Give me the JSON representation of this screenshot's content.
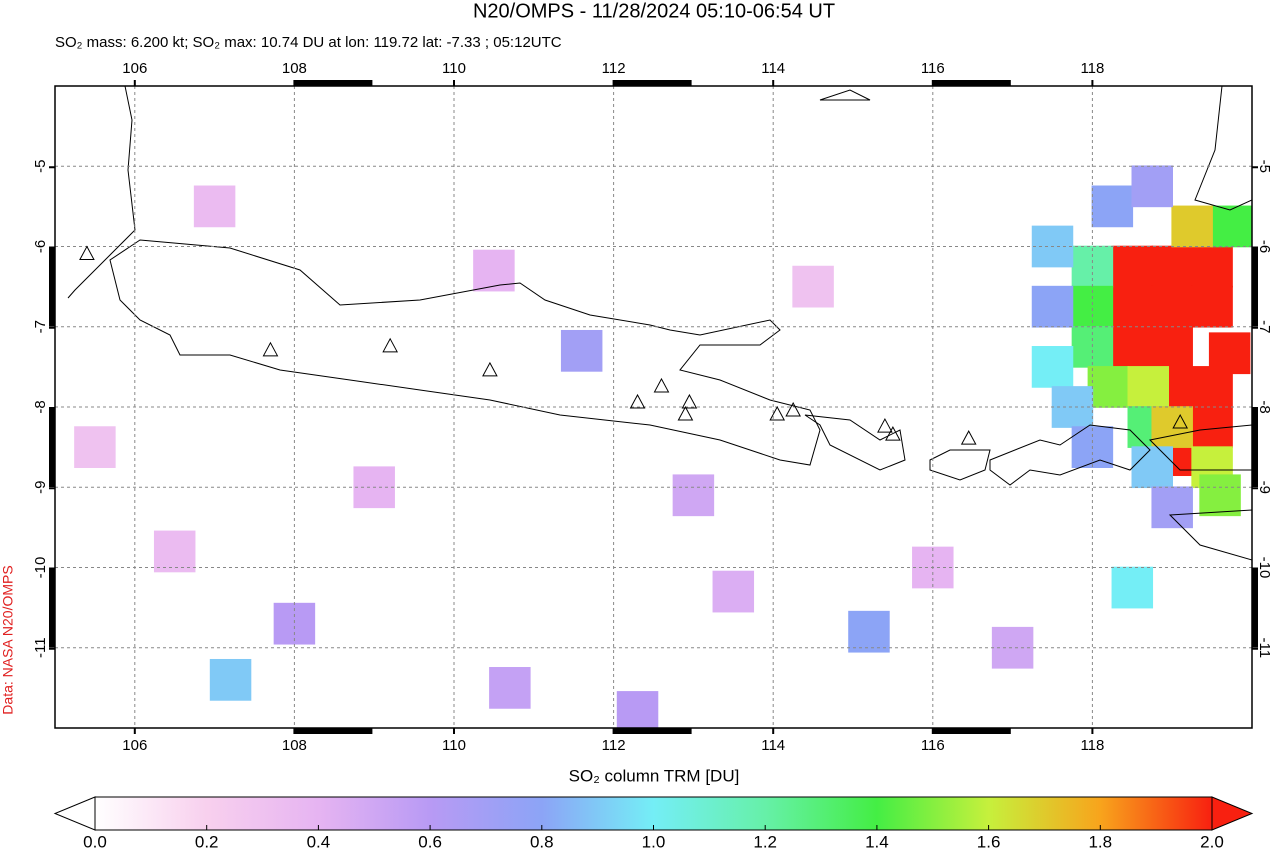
{
  "chart_data": {
    "type": "map",
    "title": "N20/OMPS - 11/28/2024 05:10-06:54 UT",
    "subtitle": "SO₂ mass: 6.200 kt; SO₂ max: 10.74 DU at lon: 119.72 lat: -7.33 ; 05:12UTC",
    "side_label": "Data: NASA N20/OMPS",
    "xlim": [
      105,
      120
    ],
    "ylim": [
      -12,
      -4
    ],
    "xticks": [
      106,
      108,
      110,
      112,
      114,
      116,
      118
    ],
    "yticks": [
      -5,
      -6,
      -7,
      -8,
      -9,
      -10,
      -11
    ],
    "grid": true,
    "colorbar": {
      "label": "SO₂ column TRM [DU]",
      "clim": [
        0,
        2
      ],
      "ticks": [
        {
          "value": 0,
          "label": "0.0"
        },
        {
          "value": 0.2,
          "label": "0.2"
        },
        {
          "value": 0.4,
          "label": "0.4"
        },
        {
          "value": 0.6,
          "label": "0.6"
        },
        {
          "value": 0.8,
          "label": "0.8"
        },
        {
          "value": 1,
          "label": "1.0"
        },
        {
          "value": 1.2,
          "label": "1.2"
        },
        {
          "value": 1.4,
          "label": "1.4"
        },
        {
          "value": 1.6,
          "label": "1.6"
        },
        {
          "value": 1.8,
          "label": "1.8"
        },
        {
          "value": 2,
          "label": "2.0"
        }
      ],
      "colors": [
        "#ffffff",
        "#f8d0ee",
        "#e6b4f2",
        "#b89af4",
        "#8ca4f6",
        "#74eef6",
        "#66f0a8",
        "#44ee44",
        "#c6f03c",
        "#f8a41c",
        "#f82010"
      ]
    },
    "cells": [
      {
        "lon": 118.5,
        "lat": -6.25,
        "value": 2.5
      },
      {
        "lon": 119,
        "lat": -6.25,
        "value": 3
      },
      {
        "lon": 119.5,
        "lat": -6.25,
        "value": 3
      },
      {
        "lon": 118.5,
        "lat": -6.75,
        "value": 3
      },
      {
        "lon": 119,
        "lat": -6.75,
        "value": 4
      },
      {
        "lon": 119.5,
        "lat": -6.75,
        "value": 5
      },
      {
        "lon": 118.5,
        "lat": -7.25,
        "value": 2.2
      },
      {
        "lon": 119,
        "lat": -7.25,
        "value": 6
      },
      {
        "lon": 119.72,
        "lat": -7.33,
        "value": 10.74
      },
      {
        "lon": 119,
        "lat": -7.75,
        "value": 3
      },
      {
        "lon": 119.5,
        "lat": -7.75,
        "value": 4
      },
      {
        "lon": 119.5,
        "lat": -8.25,
        "value": 2.5
      },
      {
        "lon": 119.25,
        "lat": -8.6,
        "value": 2.1
      },
      {
        "lon": 118,
        "lat": -6.25,
        "value": 1.2
      },
      {
        "lon": 118,
        "lat": -6.75,
        "value": 1.4
      },
      {
        "lon": 118,
        "lat": -7.25,
        "value": 1.3
      },
      {
        "lon": 118.2,
        "lat": -7.75,
        "value": 1.5
      },
      {
        "lon": 118.7,
        "lat": -7.75,
        "value": 1.6
      },
      {
        "lon": 118.7,
        "lat": -8.25,
        "value": 1.3
      },
      {
        "lon": 119,
        "lat": -8.25,
        "value": 1.7
      },
      {
        "lon": 119.5,
        "lat": -8.75,
        "value": 1.6
      },
      {
        "lon": 119.6,
        "lat": -9.1,
        "value": 1.5
      },
      {
        "lon": 119.75,
        "lat": -5.75,
        "value": 1.4
      },
      {
        "lon": 119.25,
        "lat": -5.75,
        "value": 1.7
      },
      {
        "lon": 117.5,
        "lat": -6,
        "value": 0.9
      },
      {
        "lon": 117.5,
        "lat": -6.75,
        "value": 0.8
      },
      {
        "lon": 117.5,
        "lat": -7.5,
        "value": 1
      },
      {
        "lon": 117.75,
        "lat": -8,
        "value": 0.9
      },
      {
        "lon": 118.25,
        "lat": -5.5,
        "value": 0.8
      },
      {
        "lon": 118.75,
        "lat": -5.25,
        "value": 0.7
      },
      {
        "lon": 118,
        "lat": -8.5,
        "value": 0.8
      },
      {
        "lon": 118.75,
        "lat": -8.75,
        "value": 0.9
      },
      {
        "lon": 119,
        "lat": -9.25,
        "value": 0.7
      },
      {
        "lon": 118.5,
        "lat": -10.25,
        "value": 1
      },
      {
        "lon": 111.6,
        "lat": -7.3,
        "value": 0.7
      },
      {
        "lon": 115.2,
        "lat": -10.8,
        "value": 0.8
      },
      {
        "lon": 107.2,
        "lat": -11.4,
        "value": 0.9
      },
      {
        "lon": 108,
        "lat": -10.7,
        "value": 0.6
      },
      {
        "lon": 112.3,
        "lat": -11.8,
        "value": 0.6
      },
      {
        "lon": 110.7,
        "lat": -11.5,
        "value": 0.55
      },
      {
        "lon": 113,
        "lat": -9.1,
        "value": 0.5
      },
      {
        "lon": 109,
        "lat": -9,
        "value": 0.4
      },
      {
        "lon": 107,
        "lat": -5.5,
        "value": 0.35
      },
      {
        "lon": 110.5,
        "lat": -6.3,
        "value": 0.4
      },
      {
        "lon": 113.5,
        "lat": -10.3,
        "value": 0.45
      },
      {
        "lon": 105.5,
        "lat": -8.5,
        "value": 0.3
      },
      {
        "lon": 106.5,
        "lat": -9.8,
        "value": 0.35
      },
      {
        "lon": 114.5,
        "lat": -6.5,
        "value": 0.3
      },
      {
        "lon": 116,
        "lat": -10,
        "value": 0.4
      },
      {
        "lon": 117,
        "lat": -11,
        "value": 0.5
      }
    ],
    "volcanoes": [
      {
        "lon": 105.4,
        "lat": -6.1
      },
      {
        "lon": 107.7,
        "lat": -7.3
      },
      {
        "lon": 109.2,
        "lat": -7.25
      },
      {
        "lon": 110.45,
        "lat": -7.55
      },
      {
        "lon": 112.3,
        "lat": -7.95
      },
      {
        "lon": 112.6,
        "lat": -7.75
      },
      {
        "lon": 112.95,
        "lat": -7.95
      },
      {
        "lon": 112.9,
        "lat": -8.1
      },
      {
        "lon": 114.05,
        "lat": -8.1
      },
      {
        "lon": 114.25,
        "lat": -8.05
      },
      {
        "lon": 115.4,
        "lat": -8.25
      },
      {
        "lon": 115.5,
        "lat": -8.35
      },
      {
        "lon": 116.45,
        "lat": -8.4
      },
      {
        "lon": 119.1,
        "lat": -8.2
      }
    ]
  }
}
